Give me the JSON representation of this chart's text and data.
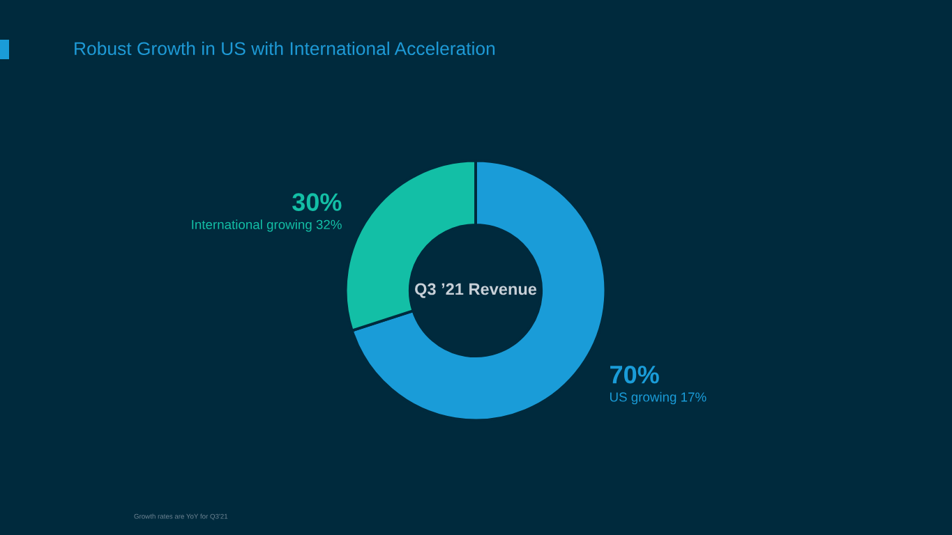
{
  "chart_data": {
    "type": "donut",
    "title": "Robust Growth in US with International Acceleration",
    "categories": [
      "US growing 17%",
      "International growing 32%"
    ],
    "values": [
      70,
      30
    ],
    "colors": [
      "#1a9cd8",
      "#13bfa6"
    ],
    "value_labels": [
      "70%",
      "30%"
    ],
    "annotations": [
      "Q3 ’21 Revenue",
      "Growth rates are YoY for Q3'21"
    ]
  }
}
